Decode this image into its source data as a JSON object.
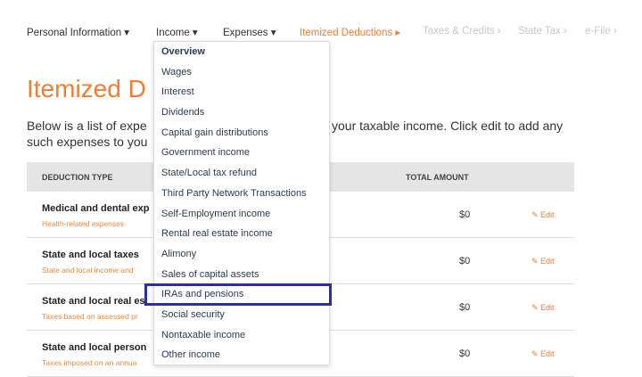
{
  "nav": {
    "items": [
      {
        "label": "Personal Information ▾",
        "state": "normal"
      },
      {
        "label": "Income ▾",
        "state": "open"
      },
      {
        "label": "Expenses ▾",
        "state": "normal"
      },
      {
        "label": "Itemized Deductions ▸",
        "state": "active"
      },
      {
        "label": "Taxes & Credits ›",
        "state": "disabled"
      },
      {
        "label": "State Tax ›",
        "state": "disabled"
      },
      {
        "label": "e-File ›",
        "state": "disabled"
      }
    ]
  },
  "page": {
    "title": "Itemized D",
    "intro_line1_left": "Below is a list of expe",
    "intro_line1_right": "your taxable income. Click edit to add any",
    "intro_line2": "such expenses to you"
  },
  "table": {
    "headers": {
      "type": "DEDUCTION TYPE",
      "total": "TOTAL AMOUNT"
    },
    "rows": [
      {
        "label": "Medical and dental exp",
        "sub": "Health-related expenses",
        "amount": "$0",
        "edit": "Edit"
      },
      {
        "label": "State and local taxes",
        "sub": "State and local income and",
        "amount": "$0",
        "edit": "Edit"
      },
      {
        "label": "State and local real es",
        "sub": "Taxes based on assessed pr",
        "amount": "$0",
        "edit": "Edit"
      },
      {
        "label": "State and local person",
        "sub": "Taxes imposed on an annua",
        "amount": "$0",
        "edit": "Edit"
      }
    ]
  },
  "income_menu": {
    "items": [
      "Overview",
      "Wages",
      "Interest",
      "Dividends",
      "Capital gain distributions",
      "Government income",
      "State/Local tax refund",
      "Third Party Network Transactions",
      "Self-Employment income",
      "Rental real estate income",
      "Alimony",
      "Sales of capital assets",
      "IRAs and pensions",
      "Social security",
      "Nontaxable income",
      "Other income"
    ],
    "highlighted": "IRAs and pensions"
  },
  "colors": {
    "accent": "#ef7d32",
    "highlight": "#2b2fa0",
    "header_bg": "#e5e5e5"
  }
}
